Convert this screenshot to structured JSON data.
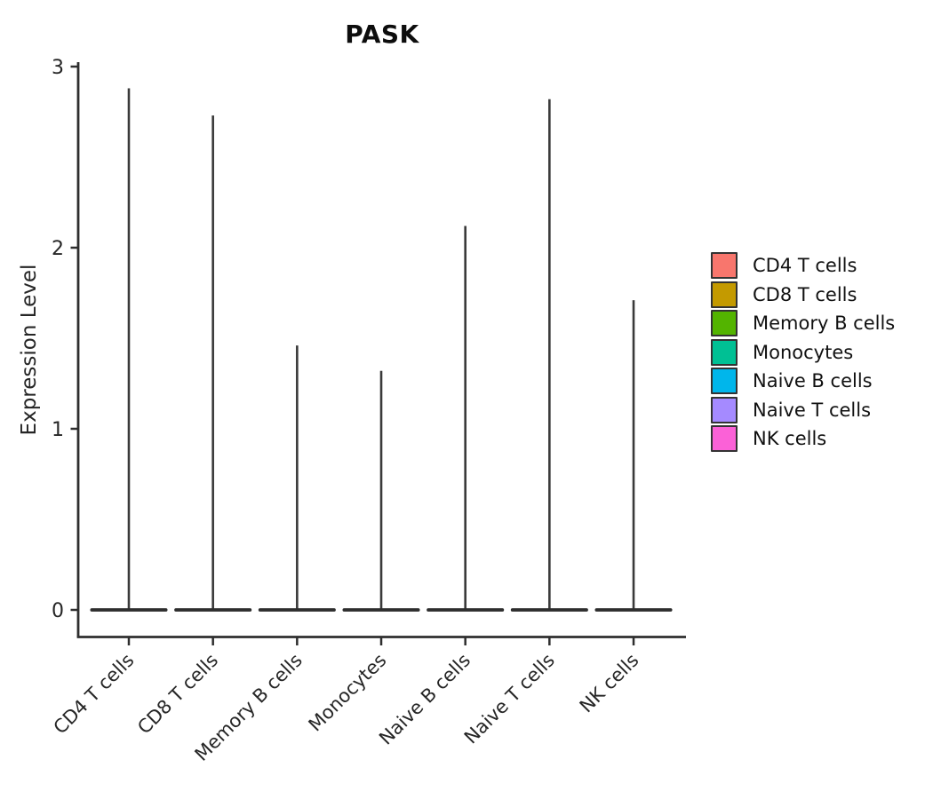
{
  "chart_data": {
    "type": "violin",
    "title": "PASK",
    "ylabel": "Expression Level",
    "xlabel": "",
    "categories": [
      "CD4 T cells",
      "CD8 T cells",
      "Memory B cells",
      "Monocytes",
      "Naive B cells",
      "Naive T cells",
      "NK cells"
    ],
    "series": [
      {
        "name": "CD4 T cells",
        "color": "#F8766D",
        "baseline": 0,
        "max_expression": 2.88
      },
      {
        "name": "CD8 T cells",
        "color": "#C49A00",
        "baseline": 0,
        "max_expression": 2.73
      },
      {
        "name": "Memory B cells",
        "color": "#53B400",
        "baseline": 0,
        "max_expression": 1.46
      },
      {
        "name": "Monocytes",
        "color": "#00C094",
        "baseline": 0,
        "max_expression": 1.32
      },
      {
        "name": "Naive B cells",
        "color": "#00B6EB",
        "baseline": 0,
        "max_expression": 2.12
      },
      {
        "name": "Naive T cells",
        "color": "#A58AFF",
        "baseline": 0,
        "max_expression": 2.82
      },
      {
        "name": "NK cells",
        "color": "#FB61D7",
        "baseline": 0,
        "max_expression": 1.71
      }
    ],
    "y_ticks": [
      0,
      1,
      2,
      3
    ],
    "ylim": [
      0,
      3
    ],
    "grid": false,
    "legend_position": "right",
    "shape_note": "each violin is flat at 0 with a thin vertical spike up to its maximum",
    "axis_color": "#2e2e2e",
    "violin_stroke_color": "#3a3a3a",
    "text_color": "#262626"
  }
}
